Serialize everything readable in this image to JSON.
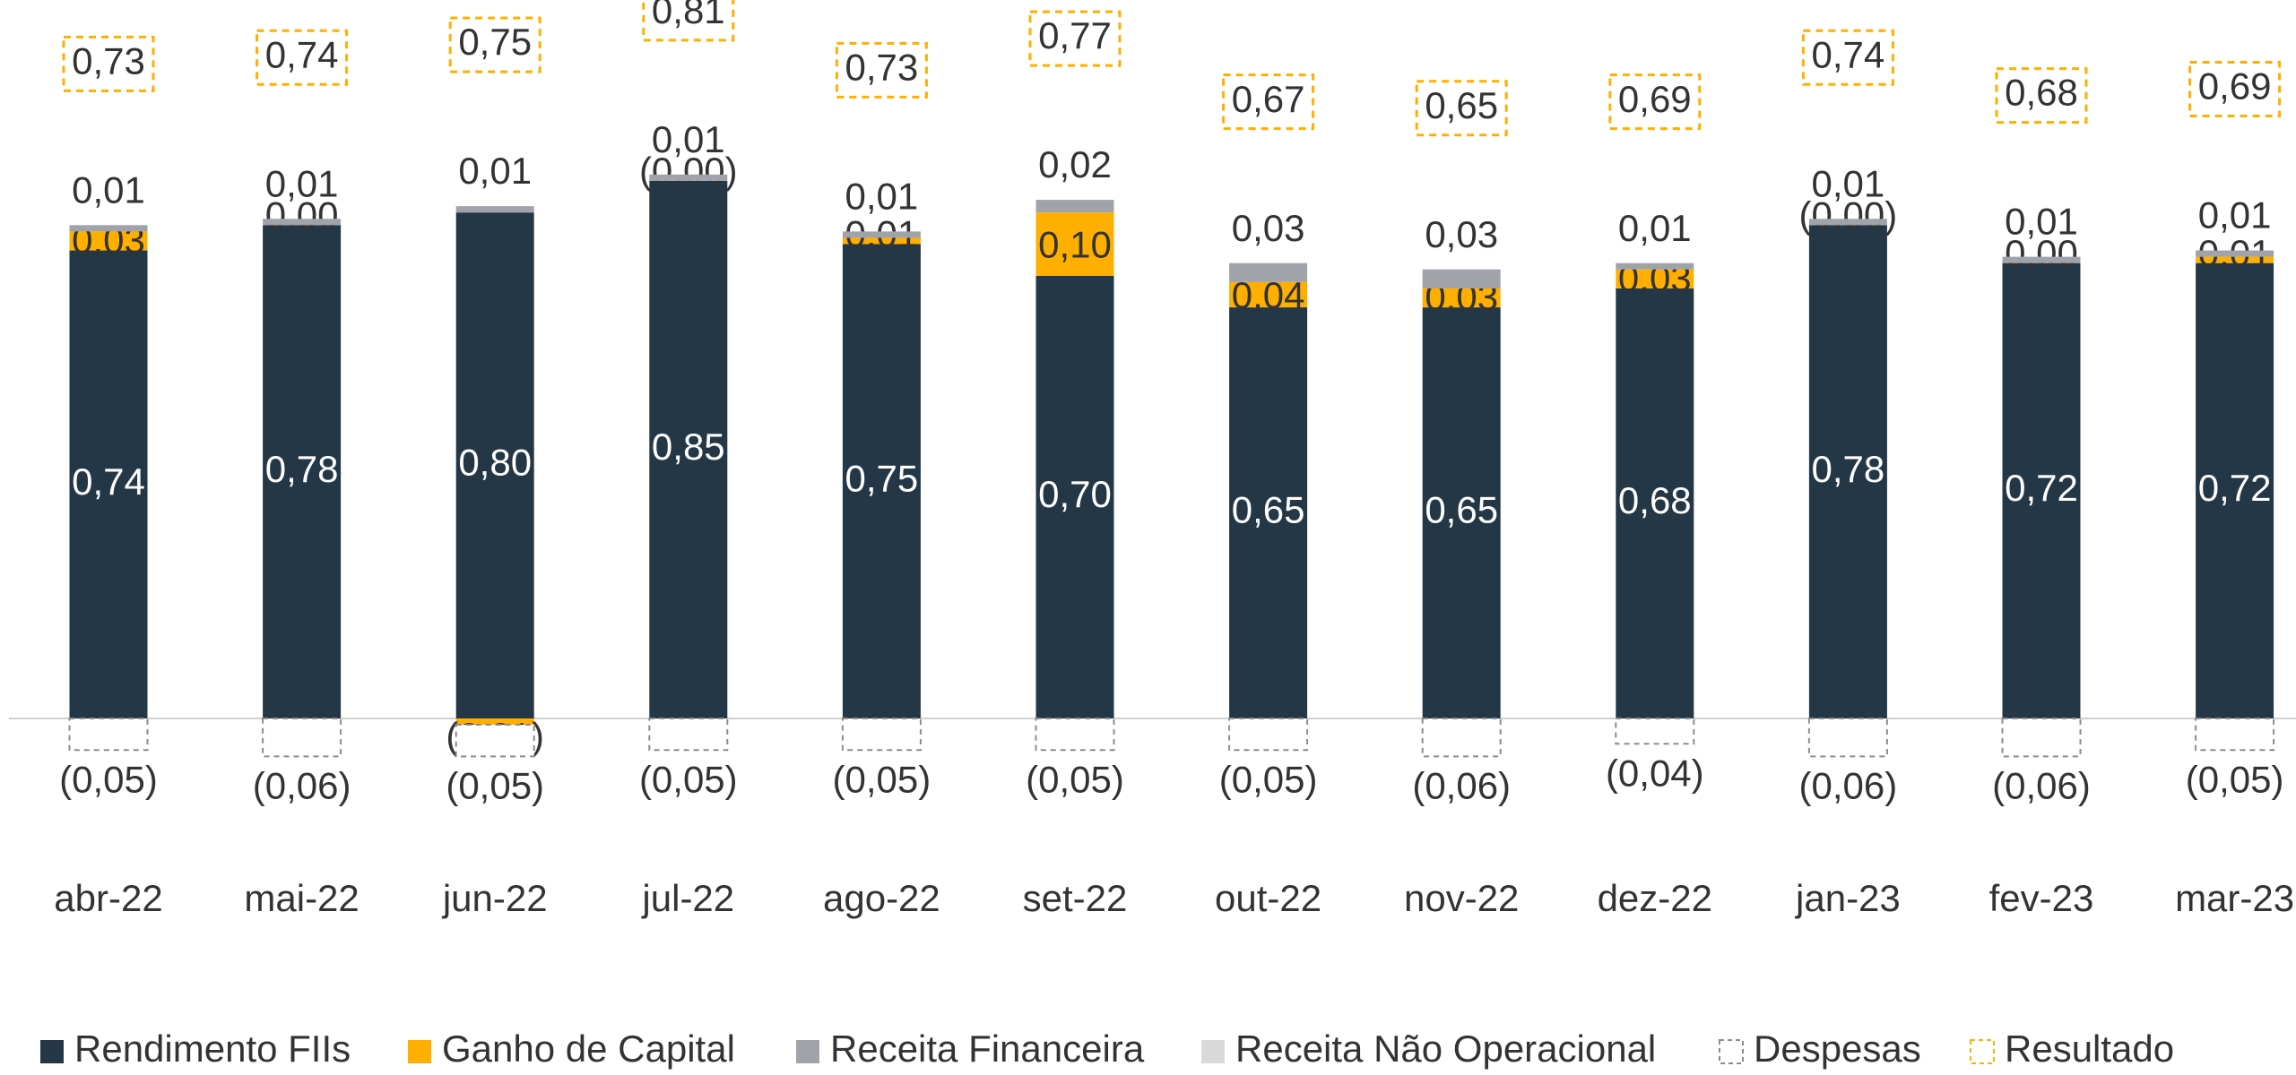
{
  "chart_data": {
    "type": "stacked_bar",
    "categories": [
      "abr-22",
      "mai-22",
      "jun-22",
      "jul-22",
      "ago-22",
      "set-22",
      "out-22",
      "nov-22",
      "dez-22",
      "jan-23",
      "fev-23",
      "mar-23"
    ],
    "series": [
      {
        "name": "Rendimento FIIs",
        "color": "#243746",
        "style": "solid",
        "values": [
          0.74,
          0.78,
          0.8,
          0.85,
          0.75,
          0.7,
          0.65,
          0.65,
          0.68,
          0.78,
          0.72,
          0.72
        ],
        "value_labels": [
          "0,74",
          "0,78",
          "0,80",
          "0,85",
          "0,75",
          "0,70",
          "0,65",
          "0,65",
          "0,68",
          "0,78",
          "0,72",
          "0,72"
        ]
      },
      {
        "name": "Ganho de Capital",
        "color": "#FFAF00",
        "style": "solid",
        "values": [
          0.03,
          0.0,
          -0.01,
          0,
          0.01,
          0.1,
          0.04,
          0.03,
          0.03,
          0,
          0.0,
          0.01
        ],
        "value_labels": [
          "0,03",
          "0,00",
          "(0,01)",
          "(0,00)",
          "0,01",
          "0,10",
          "0,04",
          "0,03",
          "0,03",
          "(0,00)",
          "0,00",
          "0,01"
        ]
      },
      {
        "name": "Receita Financeira",
        "color": "#A0A3A9",
        "style": "solid",
        "values": [
          0.01,
          0.01,
          0.01,
          0.01,
          0.01,
          0.02,
          0.03,
          0.03,
          0.01,
          0.01,
          0.01,
          0.01
        ],
        "value_labels": [
          "0,01",
          "0,01",
          "0,01",
          "0,01",
          "0,01",
          "0,02",
          "0,03",
          "0,03",
          "0,01",
          "0,01",
          "0,01",
          "0,01"
        ]
      },
      {
        "name": "Receita Não Operacional",
        "color": "#D9D9D9",
        "style": "solid",
        "values": [
          0,
          0,
          0,
          0,
          0,
          0,
          0,
          0,
          0,
          0,
          0,
          0
        ]
      },
      {
        "name": "Despesas",
        "color": "#8c8c8c",
        "style": "dashed",
        "values": [
          -0.05,
          -0.06,
          -0.05,
          -0.05,
          -0.05,
          -0.05,
          -0.05,
          -0.06,
          -0.04,
          -0.06,
          -0.06,
          -0.05
        ],
        "value_labels": [
          "(0,05)",
          "(0,06)",
          "(0,05)",
          "(0,05)",
          "(0,05)",
          "(0,05)",
          "(0,05)",
          "(0,06)",
          "(0,04)",
          "(0,06)",
          "(0,06)",
          "(0,05)"
        ]
      },
      {
        "name": "Resultado",
        "color": "#FFAF00",
        "style": "total",
        "values": [
          0.73,
          0.74,
          0.75,
          0.81,
          0.73,
          0.77,
          0.67,
          0.65,
          0.69,
          0.74,
          0.68,
          0.69
        ],
        "value_labels": [
          "0,73",
          "0,74",
          "0,75",
          "0,81",
          "0,73",
          "0,77",
          "0,67",
          "0,65",
          "0,69",
          "0,74",
          "0,68",
          "0,69"
        ]
      }
    ]
  }
}
